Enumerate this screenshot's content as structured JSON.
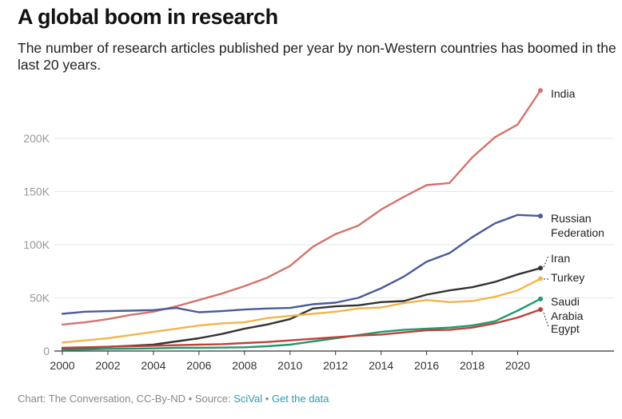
{
  "header": {
    "title": "A global boom in research",
    "subtitle": "The number of research articles published per year by non-Western countries has boomed in the last 20 years."
  },
  "footer": {
    "credit": "Chart: The Conversation, CC-By-ND",
    "sep1": "•",
    "source_label": "Source:",
    "source_link": "SciVal",
    "sep2": "•",
    "data_link": "Get the data"
  },
  "chart_data": {
    "type": "line",
    "x": [
      2000,
      2001,
      2002,
      2003,
      2004,
      2005,
      2006,
      2007,
      2008,
      2009,
      2010,
      2011,
      2012,
      2013,
      2014,
      2015,
      2016,
      2017,
      2018,
      2019,
      2020,
      2021
    ],
    "ylim": [
      0,
      250000
    ],
    "xlim": [
      2000,
      2021
    ],
    "y_ticks": [
      0,
      50000,
      100000,
      150000,
      200000
    ],
    "y_tick_labels": [
      "0",
      "50K",
      "100K",
      "150K",
      "200K"
    ],
    "x_ticks": [
      2000,
      2002,
      2004,
      2006,
      2008,
      2010,
      2012,
      2014,
      2016,
      2018,
      2020
    ],
    "x_tick_labels": [
      "2000",
      "2002",
      "2004",
      "2006",
      "2008",
      "2010",
      "2012",
      "2014",
      "2016",
      "2018",
      "2020"
    ],
    "grid": "horizontal",
    "legend": "direct labels at line ends",
    "series": [
      {
        "name": "India",
        "color": "#d4736c",
        "values": [
          25000,
          27000,
          30000,
          34000,
          37000,
          42000,
          48000,
          54000,
          61000,
          69000,
          80000,
          98000,
          110000,
          118000,
          133000,
          145000,
          156000,
          158000,
          182000,
          201000,
          213000,
          245000
        ]
      },
      {
        "name": "Russian Federation",
        "color": "#4a5a9a",
        "values": [
          35000,
          37000,
          37500,
          38000,
          38500,
          40500,
          36500,
          37500,
          39000,
          40000,
          40500,
          44000,
          45500,
          50000,
          59000,
          70000,
          84000,
          92000,
          107000,
          120000,
          128000,
          127000
        ]
      },
      {
        "name": "Iran",
        "color": "#333333",
        "values": [
          2000,
          3000,
          4000,
          5000,
          6000,
          9000,
          12000,
          16000,
          21000,
          25000,
          30000,
          40000,
          42000,
          43000,
          46000,
          47000,
          53000,
          57000,
          60000,
          65000,
          72000,
          78000
        ]
      },
      {
        "name": "Turkey",
        "color": "#f0b64a",
        "values": [
          8000,
          10000,
          12000,
          15000,
          18000,
          21000,
          24000,
          26000,
          27000,
          31000,
          33000,
          35000,
          37000,
          40000,
          41000,
          45000,
          48000,
          46000,
          47000,
          51000,
          57000,
          68000
        ]
      },
      {
        "name": "Saudi Arabia",
        "color": "#1f9a6e",
        "values": [
          1000,
          1500,
          2000,
          2200,
          2500,
          3000,
          3000,
          3200,
          3500,
          4500,
          6000,
          9000,
          12000,
          15000,
          18000,
          20000,
          21000,
          22000,
          24000,
          28000,
          38000,
          49000
        ]
      },
      {
        "name": "Egypt",
        "color": "#c0403a",
        "values": [
          3000,
          3500,
          4000,
          4500,
          5000,
          5500,
          6000,
          6500,
          7500,
          8500,
          10000,
          11500,
          13000,
          14500,
          15500,
          17500,
          19500,
          20000,
          22000,
          26000,
          31500,
          39000
        ]
      }
    ]
  }
}
